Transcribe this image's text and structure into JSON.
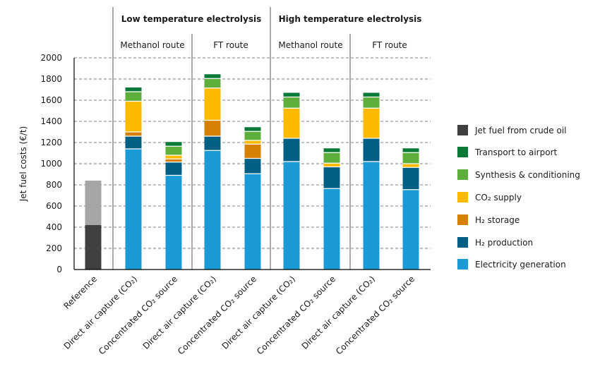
{
  "chart_data": {
    "type": "bar",
    "stacked": true,
    "ylabel": "Jet fuel costs (€/t)",
    "ylim": [
      0,
      2000
    ],
    "yticks": [
      0,
      200,
      400,
      600,
      800,
      1000,
      1200,
      1400,
      1600,
      1800,
      2000
    ],
    "grid": "horizontal dashed",
    "legend_position": "right",
    "groups": [
      {
        "label": "Low temperature electrolysis",
        "subgroups": [
          "Methanol route",
          "FT route"
        ]
      },
      {
        "label": "High temperature electrolysis",
        "subgroups": [
          "Methanol route",
          "FT route"
        ]
      }
    ],
    "categories": [
      "Reference",
      "Direct air capture (CO₂)",
      "Concentrated CO₂ source",
      "Direct air capture (CO₂)",
      "Concentrated CO₂ source",
      "Direct air capture (CO₂)",
      "Concentrated CO₂ source",
      "Direct air capture (CO₂)",
      "Concentrated CO₂ source"
    ],
    "reference": {
      "lower": 420,
      "upper": 840,
      "lower_color": "#404040",
      "upper_color": "#a6a6a6"
    },
    "series": [
      {
        "name": "Electricity generation",
        "color": "#1a9bd7",
        "values": [
          0,
          1140,
          890,
          1125,
          905,
          1020,
          765,
          1020,
          755
        ]
      },
      {
        "name": "H₂ production",
        "color": "#005f85",
        "values": [
          0,
          120,
          125,
          135,
          145,
          220,
          205,
          220,
          210
        ]
      },
      {
        "name": "H₂ storage",
        "color": "#d67f05",
        "values": [
          0,
          40,
          30,
          150,
          135,
          0,
          0,
          0,
          0
        ]
      },
      {
        "name": "CO₂ supply",
        "color": "#fbb900",
        "values": [
          0,
          290,
          35,
          305,
          35,
          285,
          35,
          285,
          35
        ]
      },
      {
        "name": "Synthesis & conditioning",
        "color": "#5eae3c",
        "values": [
          0,
          90,
          85,
          90,
          85,
          105,
          100,
          105,
          105
        ]
      },
      {
        "name": "Transport to airport",
        "color": "#0a7a37",
        "values": [
          0,
          40,
          40,
          40,
          40,
          40,
          40,
          40,
          40
        ]
      },
      {
        "name": "Jet fuel from crude oil",
        "color": "#404040",
        "values": [
          420,
          0,
          0,
          0,
          0,
          0,
          0,
          0,
          0
        ]
      }
    ],
    "legend_order": [
      "Jet fuel from crude oil",
      "Transport to airport",
      "Synthesis & conditioning",
      "CO₂ supply",
      "H₂ storage",
      "H₂ production",
      "Electricity generation"
    ]
  }
}
